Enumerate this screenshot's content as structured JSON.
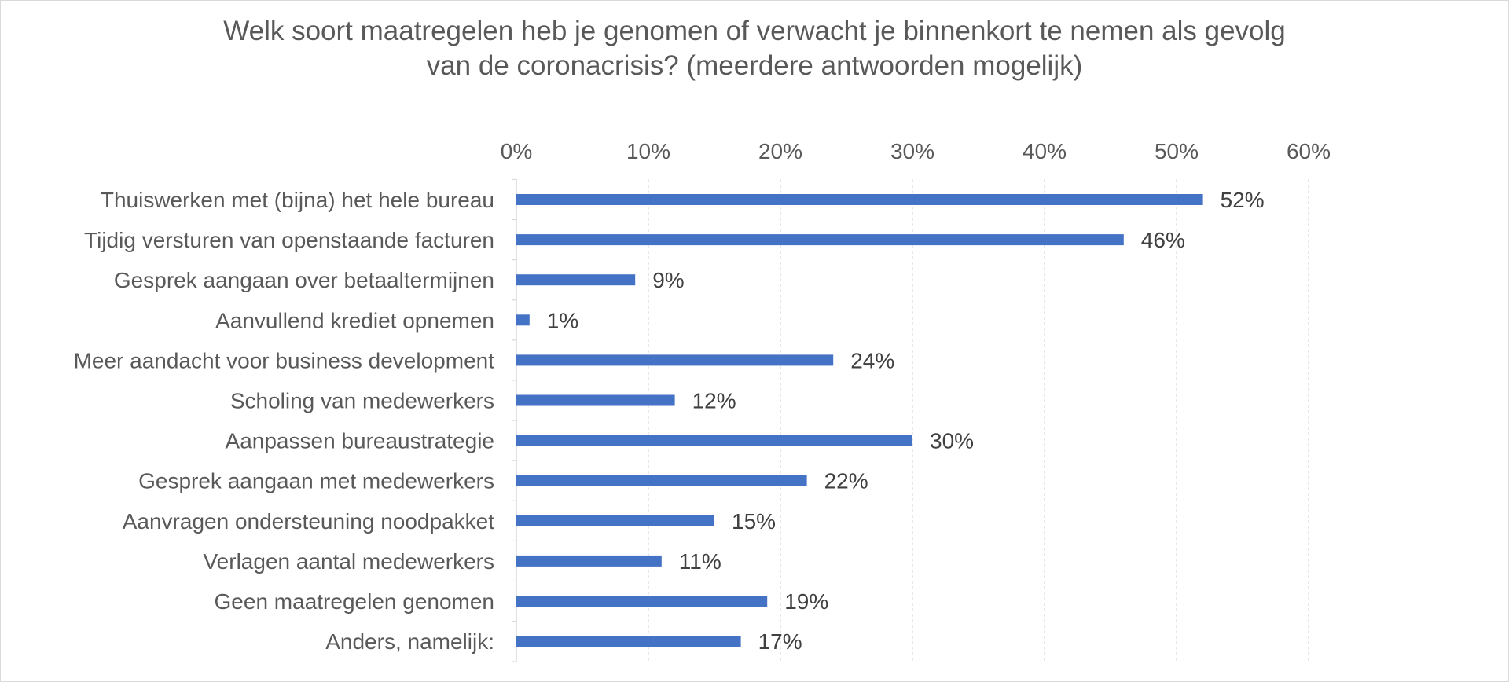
{
  "chart_data": {
    "type": "bar",
    "orientation": "horizontal",
    "title_lines": [
      "Welk soort maatregelen heb je genomen of verwacht je binnenkort te nemen als gevolg",
      "van de coronacrisis? (meerdere antwoorden mogelijk)"
    ],
    "categories": [
      "Thuiswerken met (bijna) het hele bureau",
      "Tijdig versturen van openstaande facturen",
      "Gesprek aangaan over betaaltermijnen",
      "Aanvullend krediet opnemen",
      "Meer aandacht voor business development",
      "Scholing van medewerkers",
      "Aanpassen bureaustrategie",
      "Gesprek aangaan met medewerkers",
      "Aanvragen ondersteuning noodpakket",
      "Verlagen aantal medewerkers",
      "Geen maatregelen genomen",
      "Anders, namelijk:"
    ],
    "values": [
      52,
      46,
      9,
      1,
      24,
      12,
      30,
      22,
      15,
      11,
      19,
      17
    ],
    "data_labels": [
      "52%",
      "46%",
      "9%",
      "1%",
      "24%",
      "12%",
      "30%",
      "22%",
      "15%",
      "11%",
      "19%",
      "17%"
    ],
    "xlim": [
      0,
      60
    ],
    "x_ticks": [
      "0%",
      "10%",
      "20%",
      "30%",
      "40%",
      "50%",
      "60%"
    ],
    "x_axis_position": "top",
    "grid": true,
    "legend": "none",
    "bar_color": "#4472c4",
    "grid_color": "#d9d9d9"
  }
}
